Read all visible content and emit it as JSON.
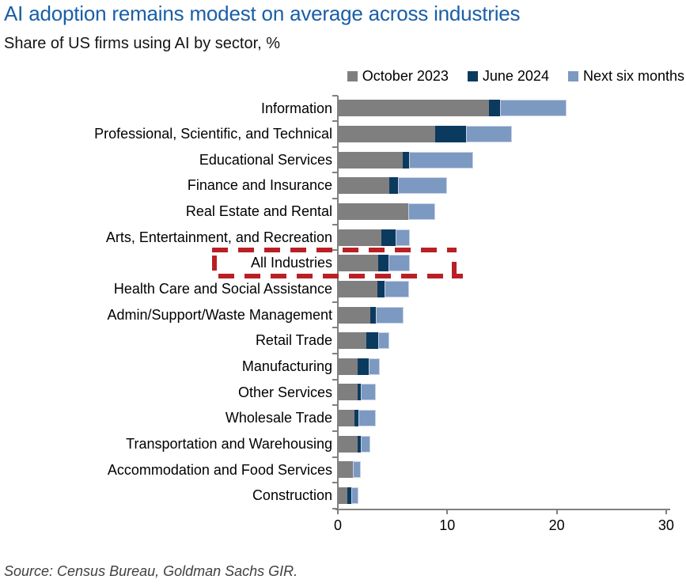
{
  "page": {
    "title": "AI adoption remains modest on average across industries",
    "subtitle": "Share of US firms using AI by sector, %",
    "source": "Source: Census Bureau, Goldman Sachs GIR."
  },
  "colors": {
    "title_blue": "#1a5fa6",
    "october_gray": "#7f7f7f",
    "june_navy": "#0b3a5f",
    "next_blue": "#7c99c2",
    "highlight_red": "#b82025",
    "axis_gray": "#808080"
  },
  "chart_data": {
    "type": "bar",
    "orientation": "horizontal",
    "stacked": true,
    "title": "AI adoption remains modest on average across industries",
    "subtitle": "Share of US firms using AI by sector, %",
    "xlim": [
      0,
      30
    ],
    "xticks": [
      0,
      10,
      20,
      30
    ],
    "grid": false,
    "legend_position": "top-right",
    "highlighted_category": "All Industries",
    "categories": [
      "Information",
      "Professional, Scientific, and Technical",
      "Educational Services",
      "Finance and Insurance",
      "Real Estate and Rental",
      "Arts, Entertainment, and Recreation",
      "All Industries",
      "Health Care and Social Assistance",
      "Admin/Support/Waste Management",
      "Retail Trade",
      "Manufacturing",
      "Other Services",
      "Wholesale Trade",
      "Transportation and Warehousing",
      "Accommodation and Food Services",
      "Construction"
    ],
    "series": [
      {
        "name": "October 2023",
        "color": "#7f7f7f",
        "cumulative_values": [
          13.8,
          8.9,
          5.9,
          4.7,
          6.4,
          4.0,
          3.7,
          3.6,
          3.0,
          2.6,
          1.8,
          1.8,
          1.5,
          1.8,
          1.4,
          0.9
        ]
      },
      {
        "name": "June 2024",
        "color": "#0b3a5f",
        "cumulative_values": [
          14.8,
          11.7,
          6.5,
          5.5,
          6.4,
          5.3,
          4.6,
          4.3,
          3.5,
          3.7,
          2.8,
          2.1,
          1.9,
          2.1,
          1.4,
          1.2
        ]
      },
      {
        "name": "Next six months",
        "color": "#7c99c2",
        "cumulative_values": [
          20.9,
          15.9,
          12.4,
          10.0,
          8.9,
          6.6,
          6.6,
          6.5,
          6.0,
          4.7,
          3.8,
          3.5,
          3.5,
          3.0,
          2.1,
          1.9
        ]
      }
    ]
  }
}
